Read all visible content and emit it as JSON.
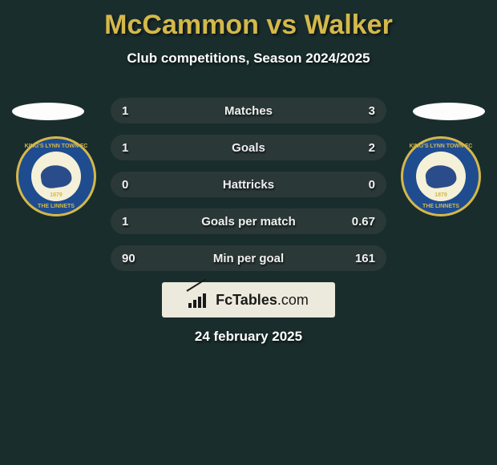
{
  "title": "McCammon vs Walker",
  "subtitle": "Club competitions, Season 2024/2025",
  "colors": {
    "background": "#1a2d2d",
    "accent": "#d4b84a",
    "row_bg": "#2b3838",
    "badge_bg": "#1e4c8f",
    "badge_inner": "#f5f0d8",
    "logo_bg": "#eceadd"
  },
  "badge": {
    "top_text": "KING'S LYNN TOWN FC",
    "bottom_text": "THE LINNETS",
    "year": "1879"
  },
  "rows": [
    {
      "label": "Matches",
      "left": "1",
      "right": "3"
    },
    {
      "label": "Goals",
      "left": "1",
      "right": "2"
    },
    {
      "label": "Hattricks",
      "left": "0",
      "right": "0"
    },
    {
      "label": "Goals per match",
      "left": "1",
      "right": "0.67"
    },
    {
      "label": "Min per goal",
      "left": "90",
      "right": "161"
    }
  ],
  "logo": {
    "brand": "FcTables",
    "suffix": ".com"
  },
  "date": "24 february 2025"
}
